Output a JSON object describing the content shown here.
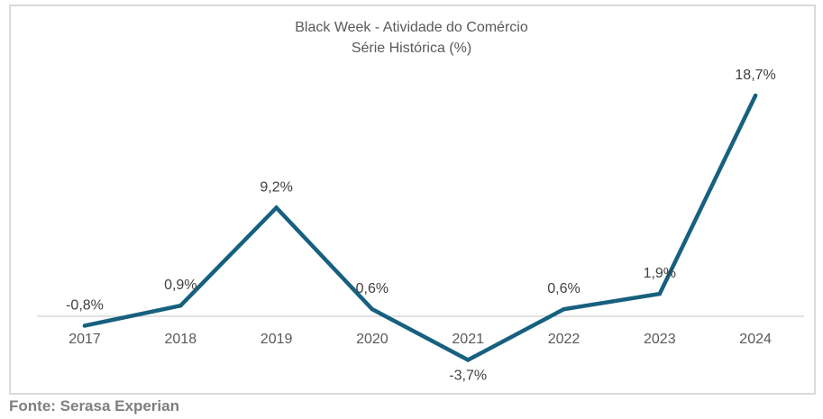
{
  "chart_data": {
    "type": "line",
    "title": "Black Week - Atividade do Comércio",
    "subtitle": "Série Histórica (%)",
    "categories": [
      "2017",
      "2018",
      "2019",
      "2020",
      "2021",
      "2022",
      "2023",
      "2024"
    ],
    "series": [
      {
        "name": "Atividade do Comércio",
        "values": [
          -0.8,
          0.9,
          9.2,
          0.6,
          -3.7,
          0.6,
          1.9,
          18.7
        ],
        "labels": [
          "-0,8%",
          "0,9%",
          "9,2%",
          "0,6%",
          "-3,7%",
          "0,6%",
          "1,9%",
          "18,7%"
        ],
        "color": "#17607f"
      }
    ],
    "xlabel": "",
    "ylabel": "",
    "ylim": [
      -5,
      20
    ],
    "grid": false,
    "legend": "none",
    "baseline_color": "#d9d9d9"
  },
  "source": "Fonte: Serasa Experian"
}
